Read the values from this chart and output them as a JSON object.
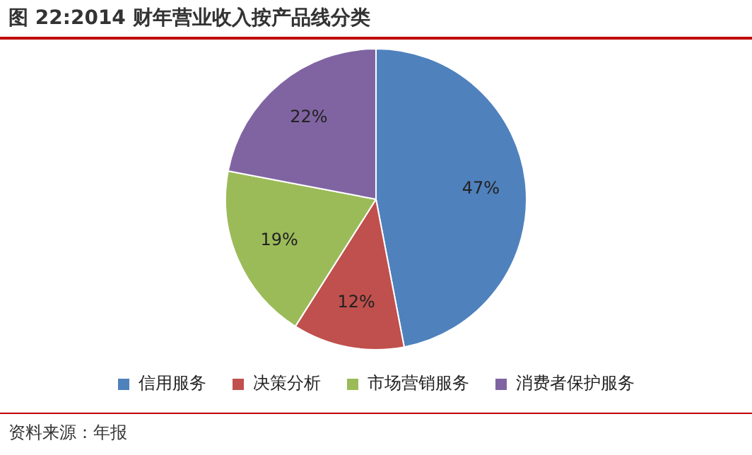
{
  "chart_data": {
    "type": "pie",
    "title": "图 22:2014 财年营业收入按产品线分类",
    "categories": [
      "信用服务",
      "决策分析",
      "市场营销服务",
      "消费者保护服务"
    ],
    "values": [
      47,
      12,
      19,
      22
    ],
    "value_labels": [
      "47%",
      "12%",
      "19%",
      "22%"
    ],
    "colors": [
      "#4f81bd",
      "#c0504d",
      "#9bbb59",
      "#8064a2"
    ],
    "legend": "bottom",
    "annotations": [
      "资料来源：年报"
    ]
  }
}
